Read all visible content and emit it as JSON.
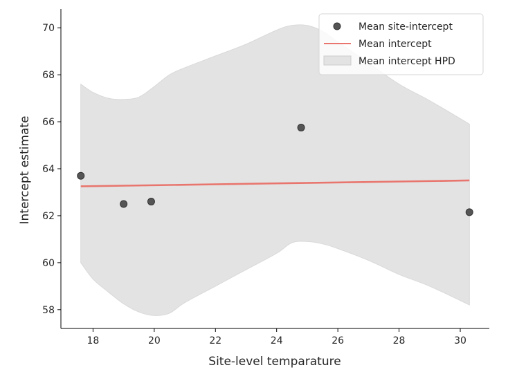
{
  "chart_data": {
    "type": "scatter",
    "title": "",
    "xlabel": "Site-level temparature",
    "ylabel": "Intercept estimate",
    "xlim": [
      16.95,
      30.95
    ],
    "ylim": [
      57.2,
      70.8
    ],
    "xticks": [
      18,
      20,
      22,
      24,
      26,
      28,
      30
    ],
    "yticks": [
      58,
      60,
      62,
      64,
      66,
      68,
      70
    ],
    "legend_position": "top-right",
    "series": [
      {
        "name": "Mean site-intercept",
        "kind": "scatter",
        "color": "#555555",
        "points": [
          {
            "x": 17.6,
            "y": 63.7
          },
          {
            "x": 19.0,
            "y": 62.5
          },
          {
            "x": 19.9,
            "y": 62.6
          },
          {
            "x": 24.8,
            "y": 65.75
          },
          {
            "x": 30.3,
            "y": 62.15
          }
        ]
      },
      {
        "name": "Mean intercept",
        "kind": "line",
        "color": "#e8766e",
        "points": [
          {
            "x": 17.6,
            "y": 63.25
          },
          {
            "x": 30.3,
            "y": 63.5
          }
        ]
      },
      {
        "name": "Mean intercept HPD",
        "kind": "band",
        "color": "#e3e3e3",
        "x": [
          17.6,
          18.0,
          18.5,
          19.0,
          19.5,
          20.0,
          20.5,
          21.0,
          22.0,
          23.0,
          24.0,
          24.5,
          25.0,
          25.5,
          26.0,
          27.0,
          28.0,
          29.0,
          30.3
        ],
        "upper": [
          67.6,
          67.25,
          67.0,
          66.95,
          67.05,
          67.5,
          68.0,
          68.3,
          68.8,
          69.3,
          69.9,
          70.1,
          70.1,
          69.85,
          69.4,
          68.5,
          67.6,
          66.9,
          65.9
        ],
        "lower": [
          60.0,
          59.3,
          58.75,
          58.25,
          57.9,
          57.75,
          57.85,
          58.3,
          59.0,
          59.7,
          60.4,
          60.85,
          60.9,
          60.8,
          60.6,
          60.1,
          59.5,
          59.0,
          58.2
        ]
      }
    ]
  }
}
